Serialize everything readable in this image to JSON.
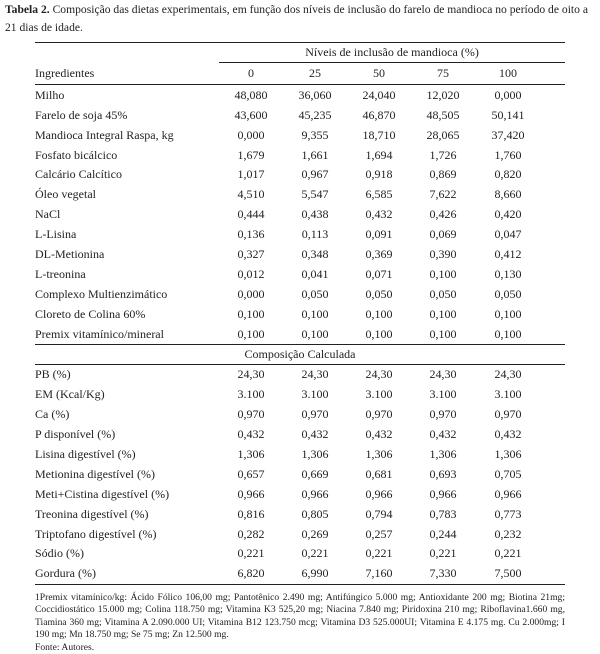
{
  "caption": {
    "label": "Tabela 2.",
    "text": " Composição das dietas experimentais, em função dos níveis de inclusão do farelo de mandioca no período de oito a 21 dias de idade."
  },
  "table": {
    "group_header": "Níveis de inclusão de mandioca (%)",
    "row_header": "Ingredientes",
    "columns": [
      "0",
      "25",
      "50",
      "75",
      "100"
    ],
    "ingredients": [
      {
        "name": "Milho",
        "values": [
          "48,080",
          "36,060",
          "24,040",
          "12,020",
          "0,000"
        ]
      },
      {
        "name": "Farelo de soja 45%",
        "values": [
          "43,600",
          "45,235",
          "46,870",
          "48,505",
          "50,141"
        ]
      },
      {
        "name": "Mandioca Integral Raspa, kg",
        "values": [
          "0,000",
          "9,355",
          "18,710",
          "28,065",
          "37,420"
        ]
      },
      {
        "name": "Fosfato bicálcico",
        "values": [
          "1,679",
          "1,661",
          "1,694",
          "1,726",
          "1,760"
        ]
      },
      {
        "name": "Calcário Calcítico",
        "values": [
          "1,017",
          "0,967",
          "0,918",
          "0,869",
          "0,820"
        ]
      },
      {
        "name": "Óleo vegetal",
        "values": [
          "4,510",
          "5,547",
          "6,585",
          "7,622",
          "8,660"
        ]
      },
      {
        "name": "NaCl",
        "values": [
          "0,444",
          "0,438",
          "0,432",
          "0,426",
          "0,420"
        ]
      },
      {
        "name": "L-Lisina",
        "values": [
          "0,136",
          "0,113",
          "0,091",
          "0,069",
          "0,047"
        ]
      },
      {
        "name": "DL-Metionina",
        "values": [
          "0,327",
          "0,348",
          "0,369",
          "0,390",
          "0,412"
        ]
      },
      {
        "name": "L-treonina",
        "values": [
          "0,012",
          "0,041",
          "0,071",
          "0,100",
          "0,130"
        ]
      },
      {
        "name": "Complexo Multienzimático",
        "values": [
          "0,000",
          "0,050",
          "0,050",
          "0,050",
          "0,050"
        ]
      },
      {
        "name": "Cloreto de Colina 60%",
        "values": [
          "0,100",
          "0,100",
          "0,100",
          "0,100",
          "0,100"
        ]
      },
      {
        "name": "Premix vitamínico/mineral",
        "values": [
          "0,100",
          "0,100",
          "0,100",
          "0,100",
          "0,100"
        ]
      }
    ],
    "section_header": "Composição Calculada",
    "composition": [
      {
        "name": "PB (%)",
        "values": [
          "24,30",
          "24,30",
          "24,30",
          "24,30",
          "24,30"
        ]
      },
      {
        "name": "EM (Kcal/Kg)",
        "values": [
          "3.100",
          "3.100",
          "3.100",
          "3.100",
          "3.100"
        ]
      },
      {
        "name": "Ca (%)",
        "values": [
          "0,970",
          "0,970",
          "0,970",
          "0,970",
          "0,970"
        ]
      },
      {
        "name": "P disponível (%)",
        "values": [
          "0,432",
          "0,432",
          "0,432",
          "0,432",
          "0,432"
        ]
      },
      {
        "name": "Lisina digestível (%)",
        "values": [
          "1,306",
          "1,306",
          "1,306",
          "1,306",
          "1,306"
        ]
      },
      {
        "name": "Metionina digestível (%)",
        "values": [
          "0,657",
          "0,669",
          "0,681",
          "0,693",
          "0,705"
        ]
      },
      {
        "name": "Meti+Cistina digestível (%)",
        "values": [
          "0,966",
          "0,966",
          "0,966",
          "0,966",
          "0,966"
        ]
      },
      {
        "name": "Treonina digestível (%)",
        "values": [
          "0,816",
          "0,805",
          "0,794",
          "0,783",
          "0,773"
        ]
      },
      {
        "name": "Triptofano digestível (%)",
        "values": [
          "0,282",
          "0,269",
          "0,257",
          "0,244",
          "0,232"
        ]
      },
      {
        "name": "Sódio (%)",
        "values": [
          "0,221",
          "0,221",
          "0,221",
          "0,221",
          "0,221"
        ]
      },
      {
        "name": "Gordura (%)",
        "values": [
          "6,820",
          "6,990",
          "7,160",
          "7,330",
          "7,500"
        ]
      }
    ]
  },
  "footnote": "1Premix vitamínico/kg: Ácido Fólico 106,00 mg; Pantotênico 2.490 mg; Antifúngico 5.000 mg; Antioxidante 200 mg; Biotina 21mg; Coccidiostático 15.000 mg; Colina 118.750 mg; Vitamina K3 525,20 mg; Niacina 7.840 mg; Piridoxina 210 mg; Riboflavina1.660 mg, Tiamina 360 mg; Vitamina A 2.090.000 UI; Vitamina B12 123.750 mcg; Vitamina D3 525.000UI; Vitamina E 4.175 mg. Cu 2.000mg; I 190 mg; Mn 18.750 mg; Se 75 mg; Zn 12.500 mg.",
  "source": "Fonte: Autores."
}
